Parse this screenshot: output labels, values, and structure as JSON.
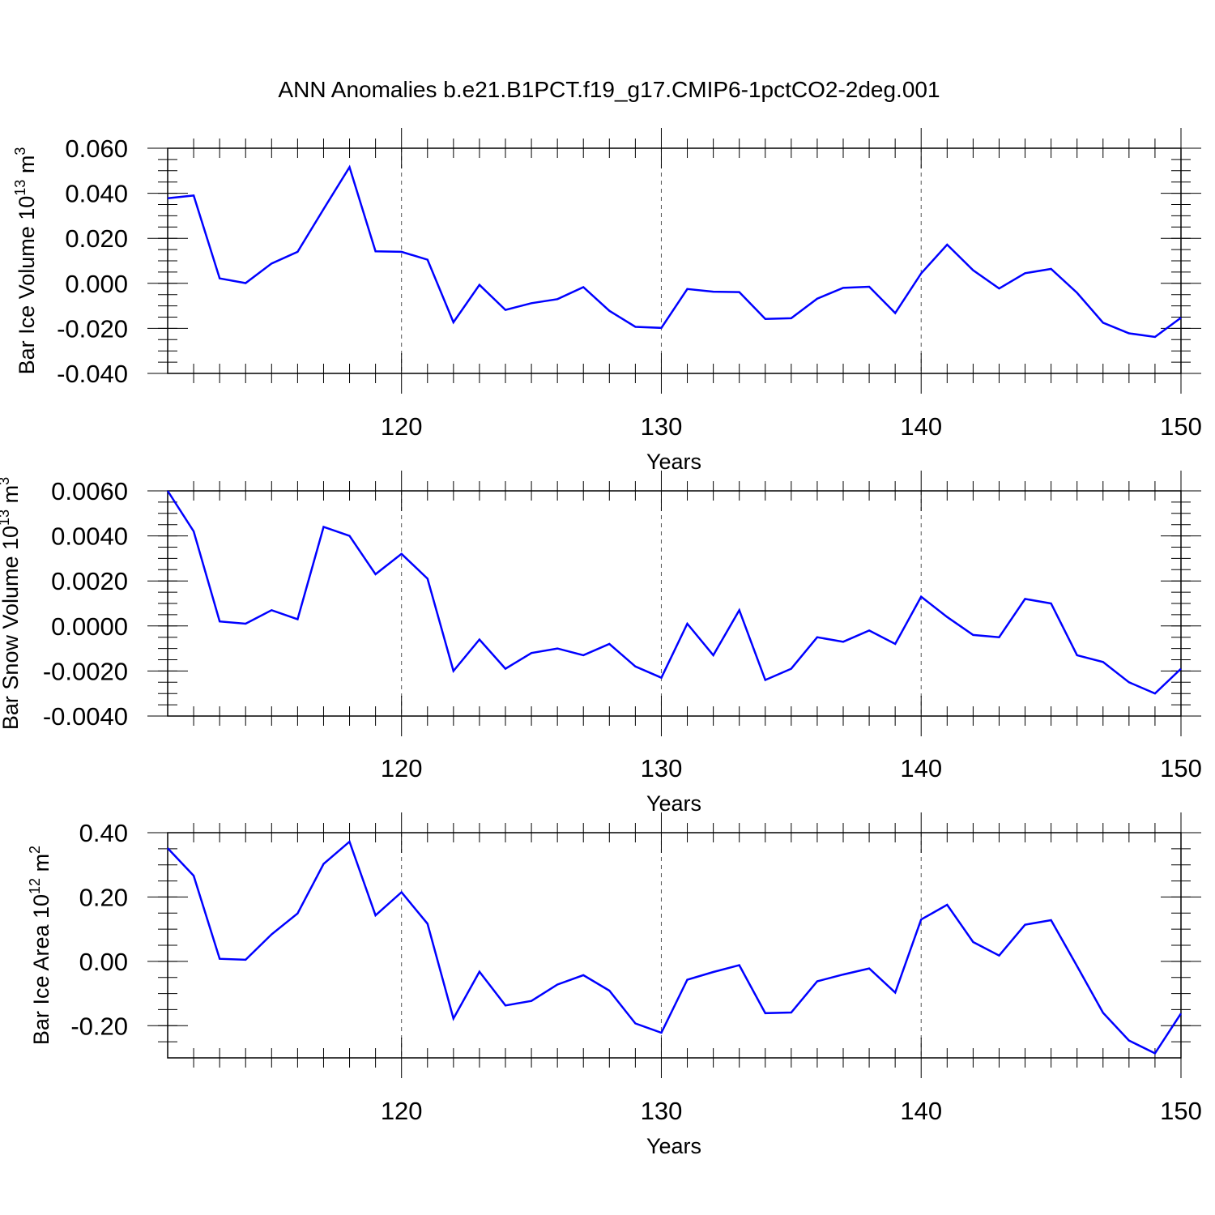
{
  "title": "ANN Anomalies b.e21.B1PCT.f19_g17.CMIP6-1pctCO2-2deg.001",
  "line_color": "#0000ff",
  "chart_data": [
    {
      "type": "line",
      "xlabel": "Years",
      "ylabel": {
        "text": "Bar Ice Volume 10",
        "sup1": "13",
        "unit": " m",
        "sup2": "3"
      },
      "xlim": [
        111,
        150
      ],
      "ylim": [
        -0.04,
        0.06
      ],
      "x_ticks": [
        "120",
        "130",
        "140",
        "150"
      ],
      "y_ticks": [
        "-0.040",
        "-0.020",
        "0.000",
        "0.020",
        "0.040",
        "0.060"
      ],
      "grid": "dashed vertical lines at 120, 130, 140",
      "x": [
        111,
        112,
        113,
        114,
        115,
        116,
        117,
        118,
        119,
        120,
        121,
        122,
        123,
        124,
        125,
        126,
        127,
        128,
        129,
        130,
        131,
        132,
        133,
        134,
        135,
        136,
        137,
        138,
        139,
        140,
        141,
        142,
        143,
        144,
        145,
        146,
        147,
        148,
        149,
        150
      ],
      "values": [
        0.0378,
        0.039,
        0.0022,
        0.0001,
        0.0088,
        0.014,
        0.033,
        0.0516,
        0.0142,
        0.014,
        0.0105,
        -0.0173,
        -0.0007,
        -0.0118,
        -0.0088,
        -0.007,
        -0.0017,
        -0.0122,
        -0.0193,
        -0.0198,
        -0.0025,
        -0.0037,
        -0.0039,
        -0.0158,
        -0.0155,
        -0.0068,
        -0.002,
        -0.0015,
        -0.0132,
        0.0044,
        0.0172,
        0.0058,
        -0.0023,
        0.0045,
        0.0064,
        -0.0042,
        -0.0175,
        -0.0222,
        -0.0238,
        -0.0153
      ]
    },
    {
      "type": "line",
      "xlabel": "Years",
      "ylabel": {
        "text": "Bar Snow Volume 10",
        "sup1": "13",
        "unit": " m",
        "sup2": "3"
      },
      "xlim": [
        111,
        150
      ],
      "ylim": [
        -0.004,
        0.006
      ],
      "x_ticks": [
        "120",
        "130",
        "140",
        "150"
      ],
      "y_ticks": [
        "-0.0040",
        "-0.0020",
        "0.0000",
        "0.0020",
        "0.0040",
        "0.0060"
      ],
      "grid": "dashed vertical lines at 120, 130, 140",
      "x": [
        111,
        112,
        113,
        114,
        115,
        116,
        117,
        118,
        119,
        120,
        121,
        122,
        123,
        124,
        125,
        126,
        127,
        128,
        129,
        130,
        131,
        132,
        133,
        134,
        135,
        136,
        137,
        138,
        139,
        140,
        141,
        142,
        143,
        144,
        145,
        146,
        147,
        148,
        149,
        150
      ],
      "values": [
        0.006,
        0.0042,
        0.0002,
        0.0001,
        0.0007,
        0.0003,
        0.0044,
        0.004,
        0.0023,
        0.0032,
        0.0021,
        -0.002,
        -0.0006,
        -0.0019,
        -0.0012,
        -0.001,
        -0.0013,
        -0.0008,
        -0.0018,
        -0.0023,
        0.0001,
        -0.0013,
        0.0007,
        -0.0024,
        -0.0019,
        -0.0005,
        -0.0007,
        -0.0002,
        -0.0008,
        0.0013,
        0.0004,
        -0.0004,
        -0.0005,
        0.0012,
        0.001,
        -0.0013,
        -0.0016,
        -0.0025,
        -0.003,
        -0.0019
      ]
    },
    {
      "type": "line",
      "xlabel": "Years",
      "ylabel": {
        "text": "Bar Ice Area 10",
        "sup1": "12",
        "unit": " m",
        "sup2": "2"
      },
      "xlim": [
        111,
        150
      ],
      "ylim": [
        -0.3,
        0.4
      ],
      "x_ticks": [
        "120",
        "130",
        "140",
        "150"
      ],
      "y_ticks": [
        "-0.20",
        "0.00",
        "0.20",
        "0.40"
      ],
      "grid": "dashed vertical lines at 120, 130, 140",
      "x": [
        111,
        112,
        113,
        114,
        115,
        116,
        117,
        118,
        119,
        120,
        121,
        122,
        123,
        124,
        125,
        126,
        127,
        128,
        129,
        130,
        131,
        132,
        133,
        134,
        135,
        136,
        137,
        138,
        139,
        140,
        141,
        142,
        143,
        144,
        145,
        146,
        147,
        148,
        149,
        150
      ],
      "values": [
        0.352,
        0.266,
        0.008,
        0.005,
        0.084,
        0.149,
        0.303,
        0.372,
        0.143,
        0.215,
        0.117,
        -0.178,
        -0.032,
        -0.137,
        -0.123,
        -0.072,
        -0.043,
        -0.091,
        -0.193,
        -0.222,
        -0.057,
        -0.033,
        -0.012,
        -0.161,
        -0.159,
        -0.062,
        -0.041,
        -0.022,
        -0.097,
        0.13,
        0.176,
        0.06,
        0.018,
        0.114,
        0.128,
        -0.015,
        -0.16,
        -0.246,
        -0.286,
        -0.162
      ]
    }
  ]
}
